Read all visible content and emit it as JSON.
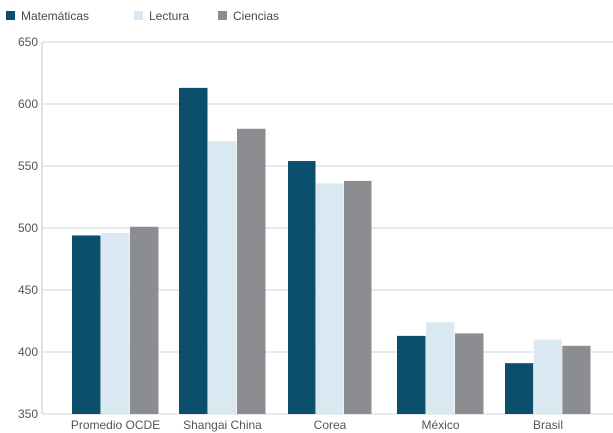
{
  "chart_data": {
    "type": "bar",
    "title": "",
    "xlabel": "",
    "ylabel": "",
    "categories": [
      "Promedio OCDE",
      "Shangai China",
      "Corea",
      "México",
      "Brasil"
    ],
    "series": [
      {
        "name": "Matemáticas",
        "color": "#0b4f6c",
        "values": [
          494,
          613,
          554,
          413,
          391
        ]
      },
      {
        "name": "Lectura",
        "color": "#d9e8f1",
        "values": [
          496,
          570,
          536,
          424,
          410
        ]
      },
      {
        "name": "Ciencias",
        "color": "#8c8d90",
        "values": [
          501,
          580,
          538,
          415,
          405
        ]
      }
    ],
    "ylim": [
      350,
      650
    ],
    "yticks": [
      350,
      400,
      450,
      500,
      550,
      600,
      650
    ],
    "grid": true,
    "legend": "top-left"
  }
}
